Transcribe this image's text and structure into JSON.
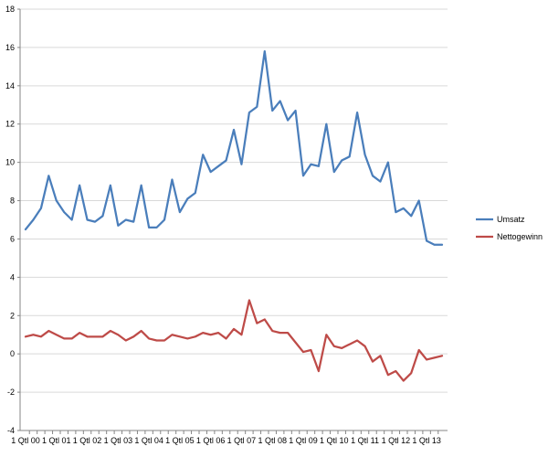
{
  "chart_data": {
    "type": "line",
    "title": "",
    "xlabel": "",
    "ylabel": "",
    "ylim": [
      -4,
      18
    ],
    "y_ticks": [
      -4,
      -2,
      0,
      2,
      4,
      6,
      8,
      10,
      12,
      14,
      16,
      18
    ],
    "y_tick_labels": [
      "-4",
      "-2",
      "0",
      "2",
      "4",
      "6",
      "8",
      "10",
      "12",
      "14",
      "16",
      "18"
    ],
    "grid": "horizontal",
    "legend_position": "right",
    "x_labels": [
      "1 Qtl 00",
      "1 Qtl 01",
      "1 Qtl 02",
      "1 Qtl 03",
      "1 Qtl 04",
      "1 Qtl 05",
      "1 Qtl 06",
      "1 Qtl 07",
      "1 Qtl 08",
      "1 Qtl 09",
      "1 Qtl 10",
      "1 Qtl 11",
      "1 Qtl 12",
      "1 Qtl 13"
    ],
    "x_label_every": 4,
    "series": [
      {
        "name": "Umsatz",
        "color": "#4a7ebb",
        "values": [
          6.5,
          7.0,
          7.6,
          9.3,
          8.0,
          7.4,
          7.0,
          8.8,
          7.0,
          6.9,
          7.2,
          8.8,
          6.7,
          7.0,
          6.9,
          8.8,
          6.6,
          6.6,
          7.0,
          9.1,
          7.4,
          8.1,
          8.4,
          10.4,
          9.5,
          9.8,
          10.1,
          11.7,
          9.9,
          12.6,
          12.9,
          15.8,
          12.7,
          13.2,
          12.2,
          12.7,
          9.3,
          9.9,
          9.8,
          12.0,
          9.5,
          10.1,
          10.3,
          12.6,
          10.4,
          9.3,
          9.0,
          10.0,
          7.4,
          7.6,
          7.2,
          8.0,
          5.9,
          5.7,
          5.7
        ]
      },
      {
        "name": "Nettogewinn",
        "color": "#be4b48",
        "values": [
          0.9,
          1.0,
          0.9,
          1.2,
          1.0,
          0.8,
          0.8,
          1.1,
          0.9,
          0.9,
          0.9,
          1.2,
          1.0,
          0.7,
          0.9,
          1.2,
          0.8,
          0.7,
          0.7,
          1.0,
          0.9,
          0.8,
          0.9,
          1.1,
          1.0,
          1.1,
          0.8,
          1.3,
          1.0,
          2.8,
          1.6,
          1.8,
          1.2,
          1.1,
          1.1,
          0.6,
          0.1,
          0.2,
          -0.9,
          1.0,
          0.4,
          0.3,
          0.5,
          0.7,
          0.4,
          -0.4,
          -0.1,
          -1.1,
          -0.9,
          -1.4,
          -1.0,
          0.2,
          -0.3,
          -0.2,
          -0.1
        ]
      }
    ]
  }
}
